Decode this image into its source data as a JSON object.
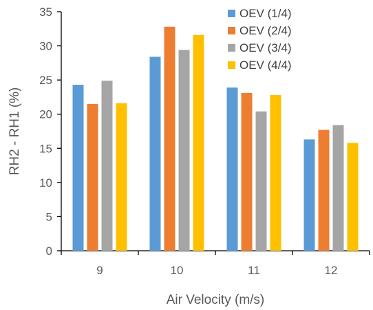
{
  "chart_data": {
    "type": "bar",
    "title": "",
    "xlabel": "Air Velocity (m/s)",
    "ylabel": "RH2 - RH1 (%)",
    "ylim": [
      0,
      35
    ],
    "yticks": [
      0,
      5,
      10,
      15,
      20,
      25,
      30,
      35
    ],
    "categories": [
      "9",
      "10",
      "11",
      "12"
    ],
    "grid": false,
    "legend_position": "top-right",
    "series": [
      {
        "name": "OEV (1/4)",
        "color": "#5B9BD5",
        "values": [
          24.3,
          28.4,
          23.9,
          16.3
        ]
      },
      {
        "name": "OEV (2/4)",
        "color": "#ED7D31",
        "values": [
          21.5,
          32.8,
          23.1,
          17.7
        ]
      },
      {
        "name": "OEV (3/4)",
        "color": "#A5A5A5",
        "values": [
          24.9,
          29.4,
          20.4,
          18.4
        ]
      },
      {
        "name": "OEV (4/4)",
        "color": "#FFC000",
        "values": [
          21.6,
          31.6,
          22.8,
          15.8
        ]
      }
    ]
  }
}
